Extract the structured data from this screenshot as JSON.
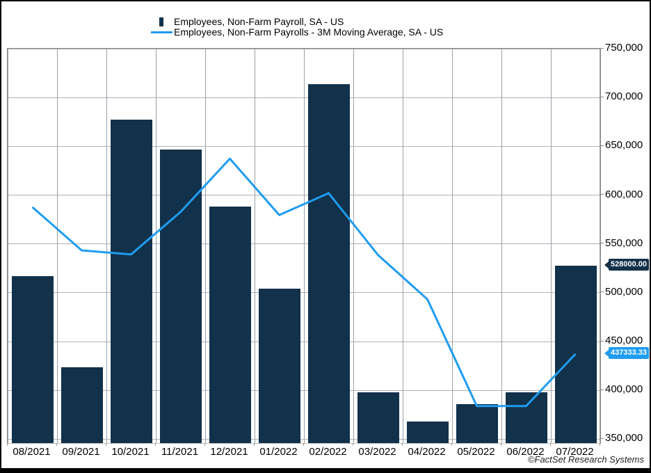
{
  "legend": [
    {
      "label": "Employees, Non-Farm Payroll, SA - US",
      "marker": "bar",
      "color": "#12314a"
    },
    {
      "label": "Employees, Non-Farm Payrolls - 3M Moving Average, SA - US",
      "marker": "line",
      "color": "#1f9cf0"
    }
  ],
  "footer": {
    "credit": "©FactSet Research Systems"
  },
  "chart_data": {
    "type": "bar+line",
    "title": "",
    "xlabel": "",
    "ylabel": "",
    "grid": true,
    "legend_position": "top",
    "categories": [
      "08/2021",
      "09/2021",
      "10/2021",
      "11/2021",
      "12/2021",
      "01/2022",
      "02/2022",
      "03/2022",
      "04/2022",
      "05/2022",
      "06/2022",
      "07/2022"
    ],
    "series": [
      {
        "name": "Employees, Non-Farm Payroll, SA - US",
        "type": "bar",
        "color": "#12314a",
        "values": [
          517000,
          424000,
          677000,
          647000,
          588000,
          504000,
          714000,
          398000,
          368000,
          386000,
          398000,
          528000
        ]
      },
      {
        "name": "Employees, Non-Farm Payrolls - 3M Moving Average, SA - US",
        "type": "line",
        "color": "#1f9cf0",
        "values": [
          587666.67,
          543333.33,
          539333.33,
          582666.67,
          637333.33,
          579666.67,
          602000,
          538666.67,
          493333.33,
          384000,
          384000,
          437333.33
        ]
      }
    ],
    "y_ticks": [
      {
        "value": 750000,
        "label": "750,000"
      },
      {
        "value": 700000,
        "label": "700,000"
      },
      {
        "value": 650000,
        "label": "650,000"
      },
      {
        "value": 600000,
        "label": "600,000"
      },
      {
        "value": 550000,
        "label": "550,000"
      },
      {
        "value": 500000,
        "label": "500,000"
      },
      {
        "value": 450000,
        "label": "450,000"
      },
      {
        "value": 400000,
        "label": "400,000"
      },
      {
        "value": 350000,
        "label": "350,000"
      }
    ],
    "ylim": [
      346000,
      750000
    ],
    "value_badges": [
      {
        "text": "528000.00",
        "value": 528000,
        "color": "#12314a"
      },
      {
        "text": "437333.33",
        "value": 437333.33,
        "color": "#1f9cf0"
      }
    ]
  }
}
